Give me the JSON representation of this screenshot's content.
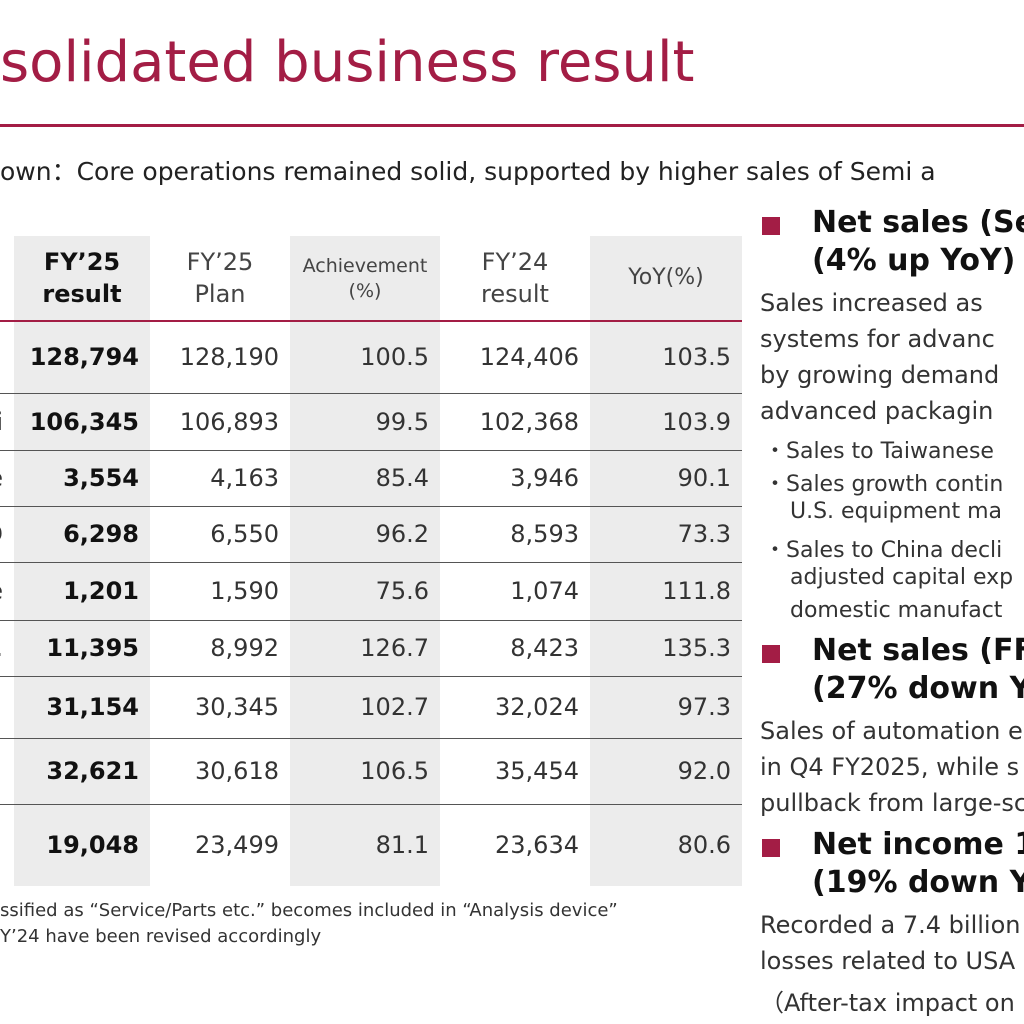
{
  "header": {
    "title": "solidated business result",
    "subtitle": "own：Core operations remained solid, supported by higher sales of Semi a"
  },
  "table": {
    "headers": [
      "",
      "FY’25\nresult",
      "FY’25\nPlan",
      "Achievement\n(%)",
      "FY’24\nresult",
      "YoY(%)"
    ],
    "rows": [
      [
        "",
        "128,794",
        "128,190",
        "100.5",
        "124,406",
        "103.5"
      ],
      [
        "i",
        "106,345",
        "106,893",
        "99.5",
        "102,368",
        "103.9"
      ],
      [
        "e",
        "3,554",
        "4,163",
        "85.4",
        "3,946",
        "90.1"
      ],
      [
        "D",
        "6,298",
        "6,550",
        "96.2",
        "8,593",
        "73.3"
      ],
      [
        "e",
        "1,201",
        "1,590",
        "75.6",
        "1,074",
        "111.8"
      ],
      [
        ".",
        "11,395",
        "8,992",
        "126.7",
        "8,423",
        "135.3"
      ],
      [
        "",
        "31,154",
        "30,345",
        "102.7",
        "32,024",
        "97.3"
      ],
      [
        "",
        "32,621",
        "30,618",
        "106.5",
        "35,454",
        "92.0"
      ],
      [
        "",
        "19,048",
        "23,499",
        "81.1",
        "23,634",
        "80.6"
      ]
    ]
  },
  "footnote": [
    "ssified as “Service/Parts etc.” becomes included in “Analysis device”",
    "Y’24 have been revised accordingly"
  ],
  "sections": [
    {
      "heading": [
        "Net sales (Se",
        "(4% up YoY)"
      ],
      "lines": [
        "Sales increased as",
        "systems for advanc",
        "by growing demand",
        "advanced packagin"
      ],
      "bullets": [
        "・Sales to Taiwanese",
        "・Sales growth contin",
        "U.S. equipment ma",
        "・Sales to China decli",
        "adjusted capital exp",
        "domestic manufact"
      ]
    },
    {
      "heading": [
        "Net sales (FF",
        "(27% down Y"
      ],
      "lines": [
        "Sales of automation e",
        "in Q4 FY2025, while s",
        "pullback from large-sc"
      ],
      "bullets": []
    },
    {
      "heading": [
        "Net income 1",
        "(19% down Y"
      ],
      "lines": [
        "Recorded a 7.4 billion",
        "losses related to USA",
        "（After-tax impact on net"
      ],
      "bullets": []
    }
  ]
}
